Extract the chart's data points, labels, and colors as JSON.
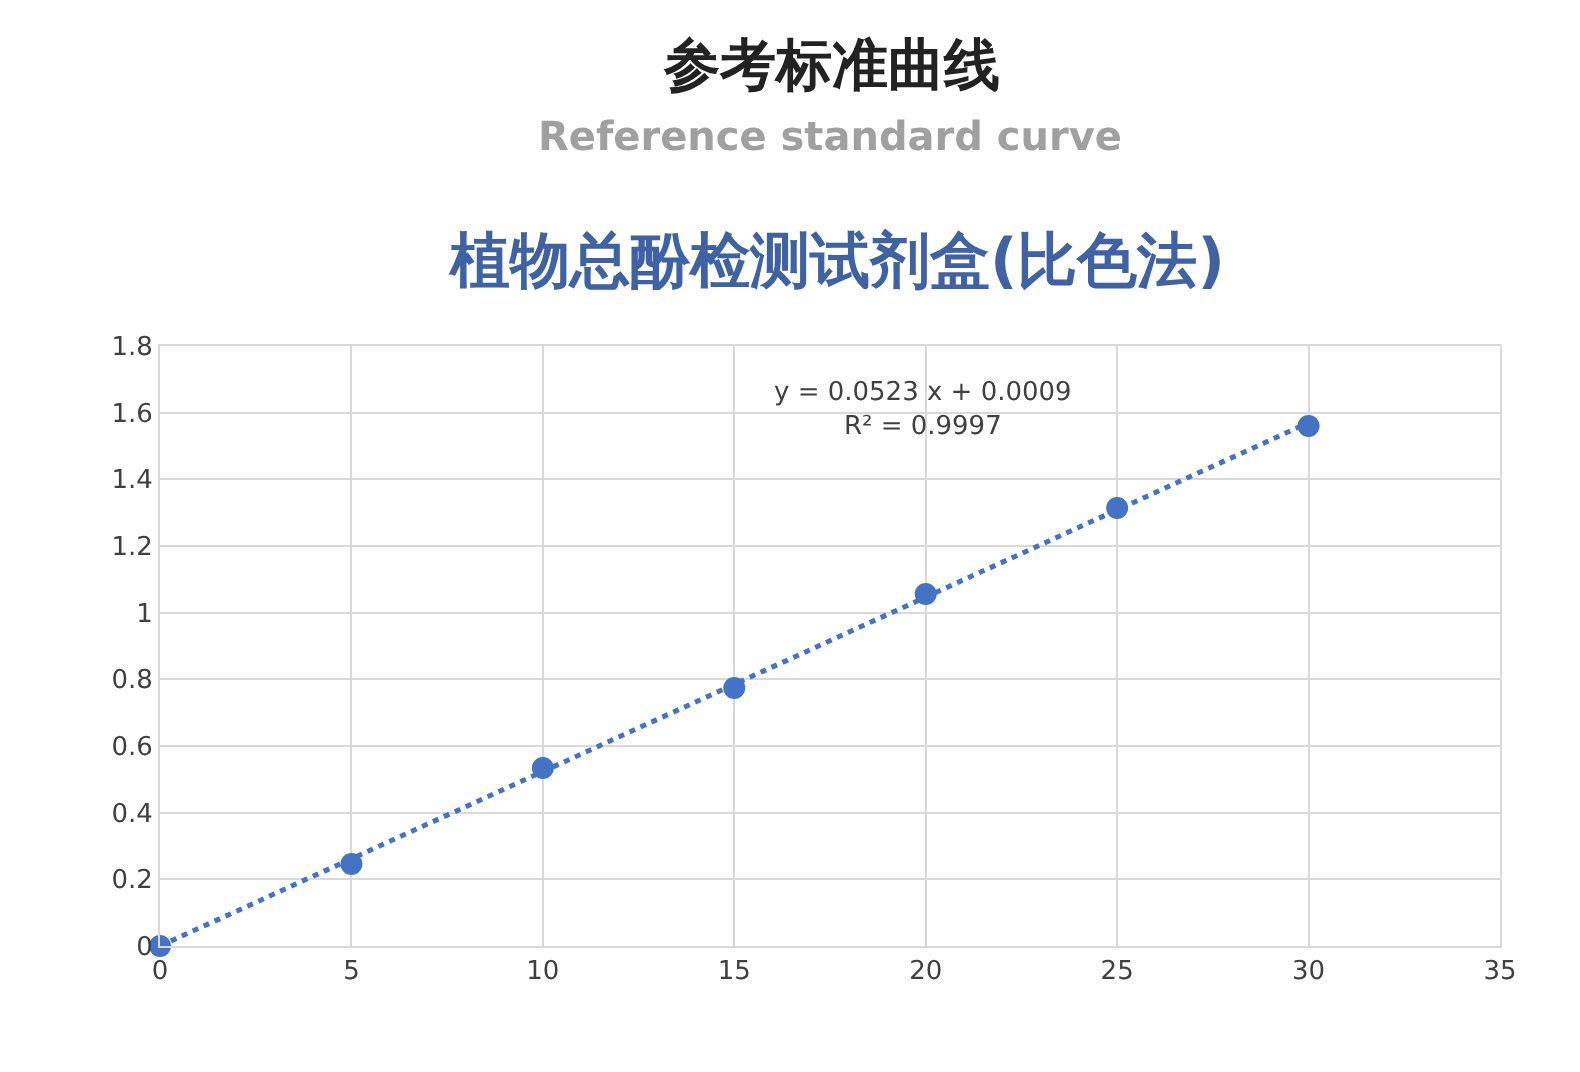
{
  "chart_data": {
    "type": "scatter",
    "title": "植物总酚检测试剂盒(比色法)",
    "annotations": [
      "参考标准曲线",
      "Reference standard curve",
      "y = 0.0523 x + 0.0009\nR² = 0.9997"
    ],
    "x": [
      0,
      5,
      10,
      15,
      20,
      25,
      30
    ],
    "series": [
      {
        "color": "#4472c4",
        "marker": "circle",
        "values": [
          0,
          0.246,
          0.534,
          0.774,
          1.056,
          1.314,
          1.56
        ]
      },
      {
        "type": "line",
        "color": "#4472c4",
        "line_style": "dotted",
        "marker": "none",
        "x": [
          0,
          30
        ],
        "values": [
          0,
          1.57
        ]
      }
    ],
    "xlim": [
      0,
      35
    ],
    "xticks": [
      0,
      5,
      10,
      15,
      20,
      25,
      30,
      35
    ],
    "ylim": [
      0,
      1.8
    ],
    "yticks": [
      0,
      0.2,
      0.4,
      0.6,
      0.8,
      1,
      1.2,
      1.4,
      1.6,
      1.8
    ],
    "grid": true
  }
}
